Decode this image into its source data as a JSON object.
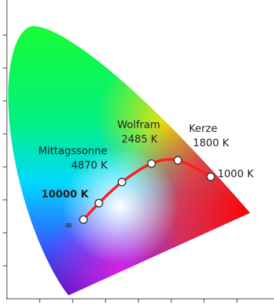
{
  "chart_data": {
    "type": "scatter",
    "x": [
      0.233,
      0.28,
      0.35,
      0.44,
      0.52,
      0.62
    ],
    "y": [
      0.24,
      0.29,
      0.354,
      0.41,
      0.42,
      0.37
    ],
    "point_labels": [
      [
        "∞"
      ],
      [
        "10000 K"
      ],
      [
        "Mittagssonne",
        "4870 K"
      ],
      [
        "Wolfram",
        "2485 K"
      ],
      [
        "Kerze",
        "1800 K"
      ],
      [
        "1000 K"
      ]
    ],
    "line_color": "#ff2020",
    "xlim": [
      0,
      0.8
    ],
    "ylim": [
      0,
      0.9
    ],
    "xticks": [
      0.1,
      0.2,
      0.3,
      0.4,
      0.5,
      0.6,
      0.7
    ],
    "yticks": [
      0.1,
      0.2,
      0.3,
      0.4,
      0.5,
      0.6,
      0.7,
      0.8
    ]
  }
}
